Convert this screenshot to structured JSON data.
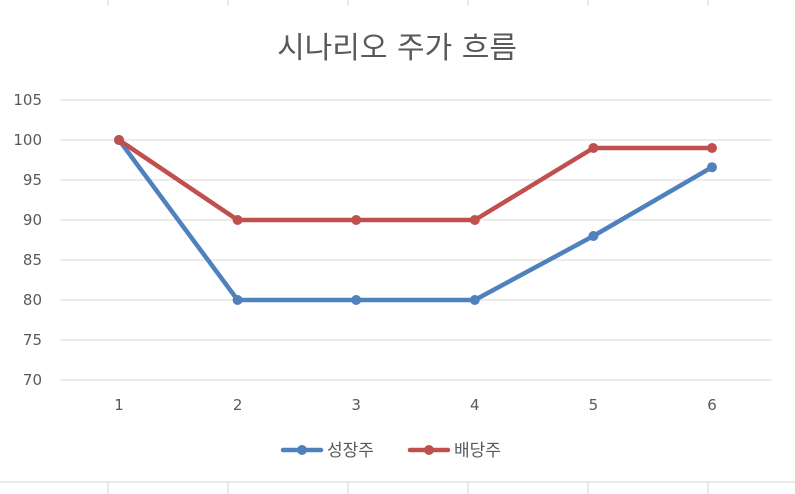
{
  "chart_data": {
    "type": "line",
    "title": "시나리오 주가 흐름",
    "xlabel": "",
    "ylabel": "",
    "categories": [
      "1",
      "2",
      "3",
      "4",
      "5",
      "6"
    ],
    "ylim": [
      70,
      105
    ],
    "yticks": [
      70,
      75,
      80,
      85,
      90,
      95,
      100,
      105
    ],
    "grid": true,
    "legend_position": "bottom",
    "series": [
      {
        "name": "성장주",
        "color": "#4f81bd",
        "values": [
          100,
          80,
          80,
          80,
          88,
          96.6
        ]
      },
      {
        "name": "배당주",
        "color": "#c0504d",
        "values": [
          100,
          90,
          90,
          90,
          99,
          99
        ]
      }
    ]
  }
}
